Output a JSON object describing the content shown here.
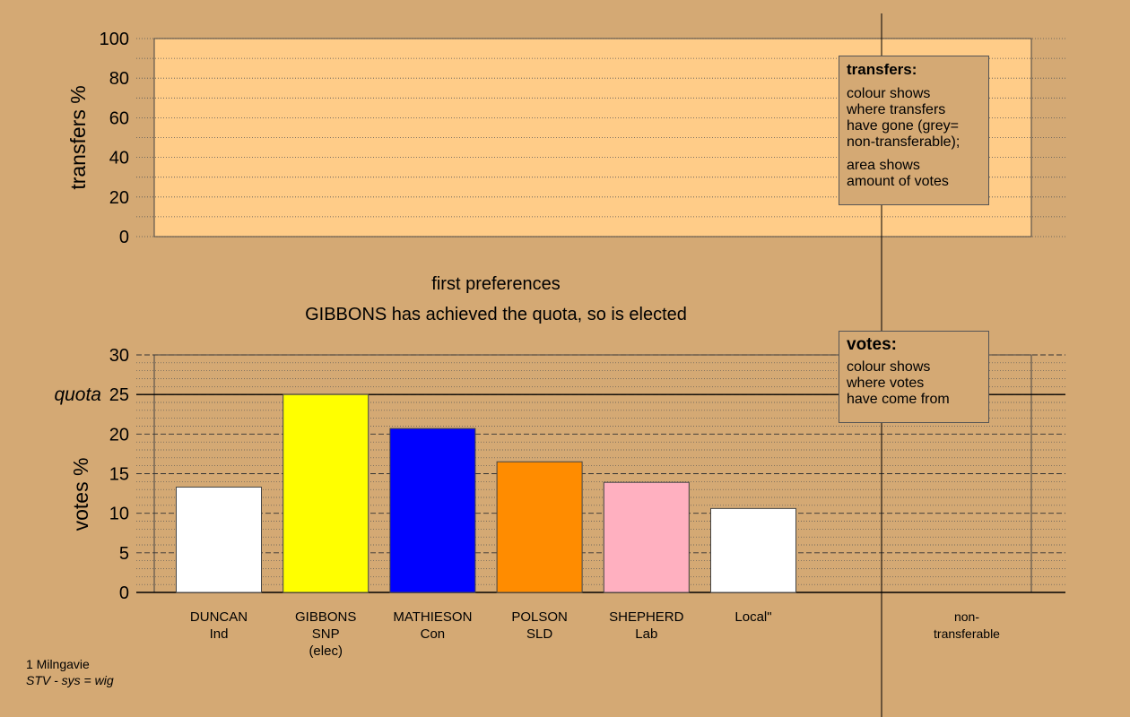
{
  "chart_data": [
    {
      "type": "bar",
      "panel": "transfers",
      "ylabel": "transfers %",
      "ylim": [
        0,
        100
      ],
      "yticks": [
        0,
        20,
        40,
        60,
        80,
        100
      ],
      "grid": "dotted",
      "categories": [],
      "values": []
    },
    {
      "type": "bar",
      "panel": "votes",
      "ylabel": "votes %",
      "ylim": [
        0,
        30
      ],
      "yticks": [
        0,
        5,
        10,
        15,
        20,
        25,
        30
      ],
      "quota": 25,
      "quota_label": "quota",
      "grid": "dashed",
      "categories": [
        "DUNCAN\nInd",
        "GIBBONS\nSNP\n(elec)",
        "MATHIESON\nCon",
        "POLSON\nSLD",
        "SHEPHERD\nLab",
        "Local\"",
        "non-\ntransferable"
      ],
      "values": [
        13.3,
        25.0,
        20.7,
        16.5,
        13.9,
        10.6,
        0
      ],
      "colors": [
        "#ffffff",
        "#ffff00",
        "#0000ff",
        "#ff8c00",
        "#ffb0c0",
        "#ffffff",
        "#808080"
      ]
    }
  ],
  "stage": {
    "title": "first preferences",
    "message": "GIBBONS has achieved the quota, so is elected"
  },
  "legend_transfers": {
    "title": "transfers:",
    "lines1": [
      "colour shows",
      "where transfers",
      "have gone (grey=",
      "non-transferable);"
    ],
    "lines2": [
      "area shows",
      "amount of votes"
    ]
  },
  "legend_votes": {
    "title": "votes:",
    "lines": [
      "colour shows",
      "where votes",
      "have come from"
    ]
  },
  "footer": {
    "ward": "1 Milngavie",
    "system": "STV - sys = wig"
  },
  "colors": {
    "background": "#d4a974",
    "panel": "#ffcc88",
    "axis": "#000000"
  }
}
